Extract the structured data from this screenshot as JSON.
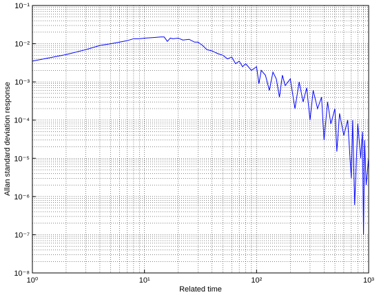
{
  "chart_data": {
    "type": "line",
    "xlabel": "Related time",
    "ylabel": "Allan standard deviation response",
    "xlog": true,
    "ylog": true,
    "grid": true,
    "minor_grid": true,
    "xlim": [
      1,
      1000
    ],
    "ylim": [
      1e-08,
      0.1
    ],
    "xticks": [
      {
        "value": 1,
        "label": "10⁰"
      },
      {
        "value": 10,
        "label": "10¹"
      },
      {
        "value": 100,
        "label": "10²"
      },
      {
        "value": 1000,
        "label": "10³"
      }
    ],
    "yticks": [
      {
        "value": 1e-08,
        "label": "10⁻⁸"
      },
      {
        "value": 1e-07,
        "label": "10⁻⁷"
      },
      {
        "value": 1e-06,
        "label": "10⁻⁶"
      },
      {
        "value": 1e-05,
        "label": "10⁻⁵"
      },
      {
        "value": 0.0001,
        "label": "10⁻⁴"
      },
      {
        "value": 0.001,
        "label": "10⁻³"
      },
      {
        "value": 0.01,
        "label": "10⁻²"
      },
      {
        "value": 0.1,
        "label": "10⁻¹"
      }
    ],
    "x": [
      1,
      2,
      3,
      4,
      5,
      6,
      7,
      8,
      9,
      10,
      12,
      14,
      15,
      16,
      17,
      18,
      20,
      22,
      25,
      28,
      30,
      33,
      36,
      40,
      45,
      50,
      55,
      60,
      65,
      70,
      75,
      80,
      90,
      100,
      105,
      110,
      120,
      130,
      140,
      150,
      160,
      170,
      180,
      200,
      220,
      240,
      260,
      280,
      300,
      320,
      350,
      380,
      400,
      430,
      460,
      500,
      520,
      550,
      600,
      650,
      700,
      720,
      750,
      800,
      850,
      880,
      900,
      920,
      950,
      1000
    ],
    "series": [
      {
        "color": "#0000ff",
        "values": [
          0.0035,
          0.0052,
          0.007,
          0.009,
          0.01,
          0.011,
          0.012,
          0.0135,
          0.0135,
          0.014,
          0.0145,
          0.015,
          0.015,
          0.0115,
          0.014,
          0.0135,
          0.014,
          0.0125,
          0.013,
          0.011,
          0.011,
          0.009,
          0.007,
          0.0065,
          0.0055,
          0.005,
          0.004,
          0.0045,
          0.003,
          0.0035,
          0.0025,
          0.003,
          0.002,
          0.0025,
          0.0009,
          0.002,
          0.0015,
          0.0006,
          0.0018,
          0.0012,
          0.0004,
          0.0015,
          0.0008,
          0.0012,
          0.0002,
          0.001,
          0.0003,
          0.0007,
          0.0001,
          0.0006,
          0.0002,
          0.0004,
          3e-05,
          0.0003,
          8e-05,
          0.0002,
          1.5e-05,
          0.00015,
          4e-05,
          0.0001,
          3e-06,
          0.0001,
          6e-07,
          8e-05,
          1e-05,
          5e-05,
          1e-07,
          3e-05,
          2e-06,
          1e-05
        ]
      }
    ]
  }
}
